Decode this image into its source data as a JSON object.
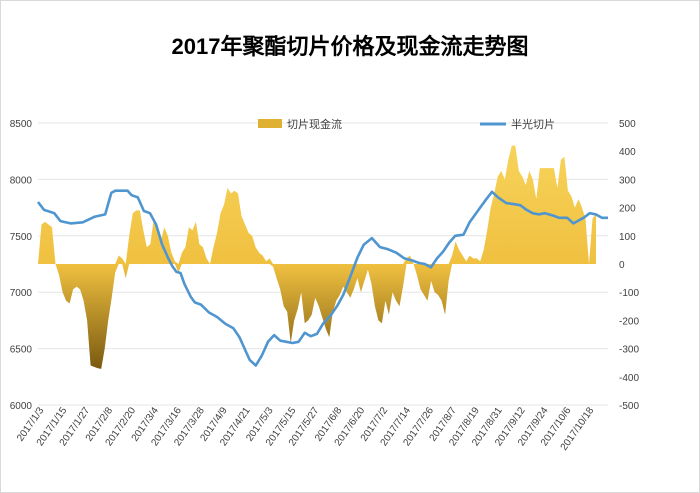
{
  "chart_data": {
    "type": "combo",
    "title": "2017年聚酯切片价格及现金流走势图",
    "x_labels": [
      "2017/1/3",
      "2017/1/15",
      "2017/1/27",
      "2017/2/8",
      "2017/2/20",
      "2017/3/4",
      "2017/3/16",
      "2017/3/28",
      "2017/4/9",
      "2017/4/21",
      "2017/5/3",
      "2017/5/15",
      "2017/5/27",
      "2017/6/8",
      "2017/6/20",
      "2017/7/2",
      "2017/7/14",
      "2017/7/26",
      "2017/8/7",
      "2017/8/19",
      "2017/8/31",
      "2017/9/12",
      "2017/9/24",
      "2017/10/6",
      "2017/10/18"
    ],
    "left_axis": {
      "min": 6000,
      "max": 8500,
      "ticks": [
        "8500",
        "8000",
        "7500",
        "7000",
        "6500",
        "6000"
      ]
    },
    "right_axis": {
      "min": -500,
      "max": 500,
      "ticks": [
        "500",
        "400",
        "300",
        "200",
        "100",
        "0",
        "-100",
        "-200",
        "-300",
        "-400",
        "-500"
      ]
    },
    "legend_position": "top",
    "grid": true,
    "series": [
      {
        "name": "切片现金流",
        "type": "area",
        "axis": "right",
        "color": "#f0c040",
        "dark_color": "#7a5a10",
        "points": [
          [
            0,
            0
          ],
          [
            1,
            140
          ],
          [
            2,
            150
          ],
          [
            3,
            140
          ],
          [
            4,
            130
          ],
          [
            5,
            0
          ],
          [
            6,
            -40
          ],
          [
            7,
            -100
          ],
          [
            8,
            -130
          ],
          [
            9,
            -140
          ],
          [
            10,
            -90
          ],
          [
            11,
            -80
          ],
          [
            12,
            -90
          ],
          [
            13,
            -130
          ],
          [
            14,
            -200
          ],
          [
            15,
            -360
          ],
          [
            16,
            -365
          ],
          [
            17,
            -370
          ],
          [
            18,
            -372
          ],
          [
            19,
            -300
          ],
          [
            20,
            -200
          ],
          [
            21,
            -120
          ],
          [
            22,
            -30
          ],
          [
            23,
            30
          ],
          [
            24,
            20
          ],
          [
            25,
            -50
          ],
          [
            26,
            100
          ],
          [
            27,
            180
          ],
          [
            28,
            190
          ],
          [
            29,
            190
          ],
          [
            30,
            120
          ],
          [
            31,
            60
          ],
          [
            32,
            70
          ],
          [
            33,
            160
          ],
          [
            34,
            120
          ],
          [
            35,
            80
          ],
          [
            36,
            130
          ],
          [
            37,
            100
          ],
          [
            38,
            40
          ],
          [
            39,
            10
          ],
          [
            40,
            -30
          ],
          [
            41,
            40
          ],
          [
            42,
            60
          ],
          [
            43,
            130
          ],
          [
            44,
            120
          ],
          [
            45,
            150
          ],
          [
            46,
            70
          ],
          [
            47,
            60
          ],
          [
            48,
            20
          ],
          [
            49,
            0
          ],
          [
            50,
            60
          ],
          [
            51,
            110
          ],
          [
            52,
            180
          ],
          [
            53,
            210
          ],
          [
            54,
            270
          ],
          [
            55,
            250
          ],
          [
            56,
            260
          ],
          [
            57,
            250
          ],
          [
            58,
            170
          ],
          [
            59,
            140
          ],
          [
            60,
            110
          ],
          [
            61,
            100
          ],
          [
            62,
            60
          ],
          [
            63,
            40
          ],
          [
            64,
            30
          ],
          [
            65,
            10
          ],
          [
            66,
            20
          ],
          [
            67,
            -10
          ],
          [
            68,
            -50
          ],
          [
            69,
            -90
          ],
          [
            70,
            -150
          ],
          [
            71,
            -170
          ],
          [
            72,
            -280
          ],
          [
            73,
            -200
          ],
          [
            74,
            -160
          ],
          [
            75,
            -100
          ],
          [
            76,
            -210
          ],
          [
            77,
            -200
          ],
          [
            78,
            -180
          ],
          [
            79,
            -120
          ],
          [
            80,
            -150
          ],
          [
            81,
            -190
          ],
          [
            82,
            -230
          ],
          [
            83,
            -260
          ],
          [
            84,
            -170
          ],
          [
            85,
            -130
          ],
          [
            86,
            -110
          ],
          [
            87,
            -80
          ],
          [
            88,
            -100
          ],
          [
            89,
            -120
          ],
          [
            90,
            -90
          ],
          [
            91,
            -50
          ],
          [
            92,
            -100
          ],
          [
            93,
            -60
          ],
          [
            94,
            -20
          ],
          [
            95,
            -70
          ],
          [
            96,
            -150
          ],
          [
            97,
            -200
          ],
          [
            98,
            -210
          ],
          [
            99,
            -130
          ],
          [
            100,
            -180
          ],
          [
            101,
            -100
          ],
          [
            102,
            -130
          ],
          [
            103,
            -150
          ],
          [
            104,
            -80
          ],
          [
            105,
            20
          ],
          [
            106,
            30
          ],
          [
            107,
            0
          ],
          [
            108,
            -40
          ],
          [
            109,
            -90
          ],
          [
            110,
            -110
          ],
          [
            111,
            -130
          ],
          [
            112,
            -60
          ],
          [
            113,
            -100
          ],
          [
            114,
            -110
          ],
          [
            115,
            -130
          ],
          [
            116,
            -180
          ],
          [
            117,
            -60
          ],
          [
            118,
            30
          ],
          [
            119,
            80
          ],
          [
            120,
            50
          ],
          [
            121,
            30
          ],
          [
            122,
            10
          ],
          [
            123,
            30
          ],
          [
            124,
            20
          ],
          [
            125,
            20
          ],
          [
            126,
            10
          ],
          [
            127,
            50
          ],
          [
            128,
            120
          ],
          [
            129,
            200
          ],
          [
            130,
            250
          ],
          [
            131,
            310
          ],
          [
            132,
            330
          ],
          [
            133,
            300
          ],
          [
            134,
            370
          ],
          [
            135,
            420
          ],
          [
            136,
            420
          ],
          [
            137,
            330
          ],
          [
            138,
            310
          ],
          [
            139,
            280
          ],
          [
            140,
            330
          ],
          [
            141,
            300
          ],
          [
            142,
            230
          ],
          [
            143,
            340
          ],
          [
            144,
            340
          ],
          [
            145,
            340
          ],
          [
            146,
            340
          ],
          [
            147,
            340
          ],
          [
            148,
            270
          ],
          [
            149,
            370
          ],
          [
            150,
            380
          ],
          [
            151,
            260
          ],
          [
            152,
            240
          ],
          [
            153,
            200
          ],
          [
            154,
            230
          ],
          [
            155,
            200
          ],
          [
            156,
            160
          ],
          [
            157,
            0
          ],
          [
            158,
            160
          ],
          [
            159,
            180
          ]
        ]
      },
      {
        "name": "半光切片",
        "type": "line",
        "axis": "left",
        "color": "#4f95d0",
        "points": [
          [
            0,
            7800
          ],
          [
            3,
            7730
          ],
          [
            8,
            7700
          ],
          [
            11,
            7630
          ],
          [
            16,
            7610
          ],
          [
            22,
            7620
          ],
          [
            28,
            7670
          ],
          [
            33,
            7690
          ],
          [
            36,
            7880
          ],
          [
            38,
            7900
          ],
          [
            44,
            7900
          ],
          [
            46,
            7860
          ],
          [
            49,
            7840
          ],
          [
            52,
            7720
          ],
          [
            55,
            7700
          ],
          [
            58,
            7600
          ],
          [
            61,
            7420
          ],
          [
            64,
            7300
          ],
          [
            66,
            7230
          ],
          [
            68,
            7180
          ],
          [
            70,
            7170
          ],
          [
            72,
            7070
          ],
          [
            75,
            6960
          ],
          [
            77,
            6910
          ],
          [
            80,
            6890
          ],
          [
            84,
            6820
          ],
          [
            88,
            6780
          ],
          [
            92,
            6720
          ],
          [
            96,
            6680
          ],
          [
            99,
            6600
          ],
          [
            102,
            6480
          ],
          [
            104,
            6400
          ],
          [
            107,
            6350
          ],
          [
            110,
            6440
          ],
          [
            113,
            6560
          ],
          [
            116,
            6620
          ],
          [
            119,
            6570
          ],
          [
            122,
            6560
          ],
          [
            125,
            6550
          ],
          [
            128,
            6560
          ],
          [
            131,
            6640
          ],
          [
            134,
            6610
          ],
          [
            137,
            6630
          ],
          [
            140,
            6720
          ],
          [
            144,
            6800
          ],
          [
            147,
            6880
          ],
          [
            150,
            6980
          ],
          [
            153,
            7120
          ],
          [
            157,
            7310
          ],
          [
            160,
            7420
          ],
          [
            164,
            7480
          ],
          [
            168,
            7400
          ],
          [
            172,
            7380
          ],
          [
            176,
            7350
          ],
          [
            180,
            7300
          ],
          [
            184,
            7280
          ],
          [
            187,
            7260
          ],
          [
            190,
            7250
          ],
          [
            193,
            7220
          ],
          [
            196,
            7300
          ],
          [
            199,
            7360
          ],
          [
            202,
            7440
          ],
          [
            205,
            7500
          ],
          [
            209,
            7510
          ],
          [
            212,
            7620
          ],
          [
            216,
            7720
          ],
          [
            220,
            7820
          ],
          [
            223,
            7890
          ],
          [
            226,
            7840
          ],
          [
            230,
            7790
          ],
          [
            234,
            7780
          ],
          [
            237,
            7770
          ],
          [
            240,
            7730
          ],
          [
            243,
            7700
          ],
          [
            246,
            7690
          ],
          [
            249,
            7700
          ],
          [
            253,
            7680
          ],
          [
            256,
            7660
          ],
          [
            260,
            7660
          ],
          [
            263,
            7610
          ],
          [
            266,
            7640
          ],
          [
            268,
            7660
          ],
          [
            271,
            7700
          ],
          [
            274,
            7690
          ],
          [
            277,
            7660
          ],
          [
            280,
            7660
          ]
        ]
      }
    ]
  }
}
